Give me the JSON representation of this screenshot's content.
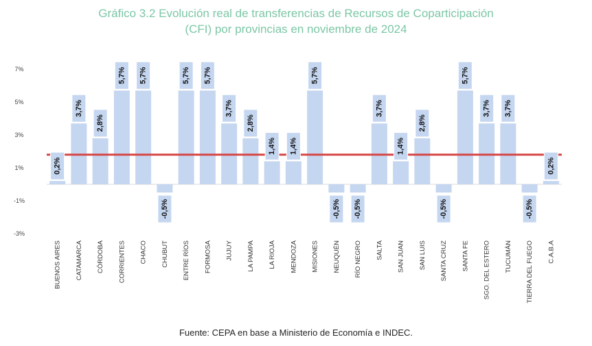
{
  "title_line1": "Gráfico 3.2 Evolución real de transferencias de Recursos de Coparticipación",
  "title_line2": "(CFI) por provincias en noviembre de 2024",
  "source": "Fuente: CEPA en base a Ministerio de Economía e INDEC.",
  "chart_data": {
    "type": "bar",
    "title": "Gráfico 3.2 Evolución real de transferencias de Recursos de Coparticipación (CFI) por provincias en noviembre de 2024",
    "categories": [
      "BUENOS AIRES",
      "CATAMARCA",
      "CÓRDOBA",
      "CORRIENTES",
      "CHACO",
      "CHUBUT",
      "ENTRE RÍOS",
      "FORMOSA",
      "JUJUY",
      "LA PAMPA",
      "LA RIOJA",
      "MENDOZA",
      "MISIONES",
      "NEUQUÉN",
      "RÍO NEGRO",
      "SALTA",
      "SAN JUAN",
      "SAN LUIS",
      "SANTA CRUZ",
      "SANTA FE",
      "SGO. DEL ESTERO",
      "TUCUMÁN",
      "TIERRA DEL FUEGO",
      "C.A.B.A"
    ],
    "values": [
      0.2,
      3.7,
      2.8,
      5.7,
      5.7,
      -0.5,
      5.7,
      5.7,
      3.7,
      2.8,
      1.4,
      1.4,
      5.7,
      -0.5,
      -0.5,
      3.7,
      1.4,
      2.8,
      -0.5,
      5.7,
      3.7,
      3.7,
      -0.5,
      0.2
    ],
    "data_labels": [
      "0,2%",
      "3,7%",
      "2,8%",
      "5,7%",
      "5,7%",
      "-0,5%",
      "5,7%",
      "5,7%",
      "3,7%",
      "2,8%",
      "1,4%",
      "1,4%",
      "5,7%",
      "-0,5%",
      "-0,5%",
      "3,7%",
      "1,4%",
      "2,8%",
      "-0,5%",
      "5,7%",
      "3,7%",
      "3,7%",
      "-0,5%",
      "0,2%"
    ],
    "yticks": [
      7,
      5,
      3,
      1,
      -1,
      -3
    ],
    "ytick_labels": [
      "7%",
      "5%",
      "3%",
      "1%",
      "-1%",
      "-3%"
    ],
    "ylim": [
      -3,
      7
    ],
    "reference_line": 1.8,
    "grid": false,
    "colors": {
      "bar": "#c5d6f0",
      "reference_line": "#d64545",
      "label_box": "#c5d6f0",
      "title": "#7cc7a6"
    }
  }
}
